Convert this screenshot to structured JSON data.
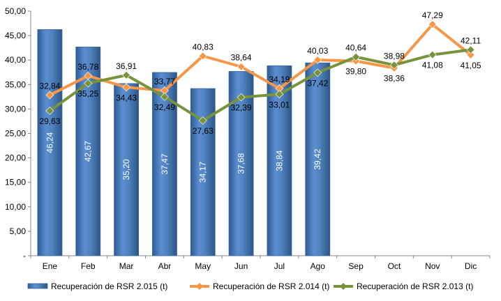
{
  "chart_data": {
    "type": "bar",
    "categories": [
      "Ene",
      "Feb",
      "Mar",
      "Abr",
      "May",
      "Jun",
      "Jul",
      "Ago",
      "Sep",
      "Oct",
      "Nov",
      "Dic"
    ],
    "ylim": [
      0,
      50
    ],
    "yticks": [
      "-",
      "5,00",
      "10,00",
      "15,00",
      "20,00",
      "25,00",
      "30,00",
      "35,00",
      "40,00",
      "45,00",
      "50,00"
    ],
    "grid": false,
    "legend_position": "bottom",
    "series": [
      {
        "name": "Recuperación de RSR 2.015 (t)",
        "kind": "bar",
        "color": "#4f81bd",
        "values": [
          46.24,
          42.67,
          35.2,
          37.47,
          34.17,
          37.68,
          38.84,
          39.42,
          null,
          null,
          null,
          null
        ],
        "labels": [
          "46,24",
          "42,67",
          "35,20",
          "37,47",
          "34,17",
          "37,68",
          "38,84",
          "39,42",
          "",
          "",
          "",
          ""
        ]
      },
      {
        "name": "Recuperación de RSR 2.014 (t)",
        "kind": "line",
        "color": "#f79646",
        "values": [
          32.84,
          36.78,
          34.43,
          33.77,
          40.83,
          38.64,
          34.19,
          40.03,
          39.8,
          38.36,
          47.29,
          41.05
        ],
        "labels": [
          "32,84",
          "36,78",
          "34,43",
          "33,77",
          "40,83",
          "38,64",
          "34,19",
          "40,03",
          "39,80",
          "38,36",
          "47,29",
          "41,05"
        ]
      },
      {
        "name": "Recuperación de RSR 2.013 (t)",
        "kind": "line",
        "color": "#77933c",
        "values": [
          29.63,
          35.25,
          36.91,
          32.49,
          27.63,
          32.39,
          33.01,
          37.42,
          40.64,
          38.98,
          41.08,
          42.11
        ],
        "labels": [
          "29,63",
          "35,25",
          "36,91",
          "32,49",
          "27,63",
          "32,39",
          "33,01",
          "37,42",
          "40,64",
          "38,98",
          "41,08",
          "42,11"
        ]
      }
    ]
  }
}
